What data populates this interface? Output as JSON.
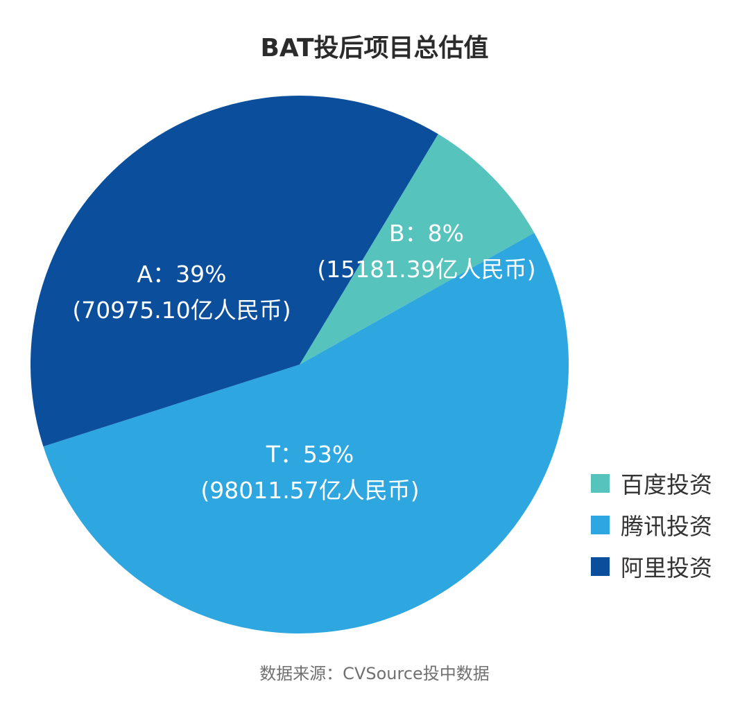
{
  "chart_data": {
    "type": "pie",
    "title": "BAT投后项目总估值",
    "slices": [
      {
        "key": "B",
        "pct_label": "B：8%",
        "value_label": "(15181.39亿人民币)",
        "value": 15181.39,
        "percent": 8,
        "color": "#56C3BC",
        "legend": "百度投资"
      },
      {
        "key": "T",
        "pct_label": "T：53%",
        "value_label": "(98011.57亿人民币)",
        "value": 98011.57,
        "percent": 53,
        "color": "#2EA7E0",
        "legend": "腾讯投资"
      },
      {
        "key": "A",
        "pct_label": "A：39%",
        "value_label": "(70975.10亿人民币)",
        "value": 70975.1,
        "percent": 39,
        "color": "#0B4F9C",
        "legend": "阿里投资"
      }
    ],
    "unit": "亿人民币",
    "legend_position": "right",
    "source": "数据来源：CVSource投中数据"
  }
}
